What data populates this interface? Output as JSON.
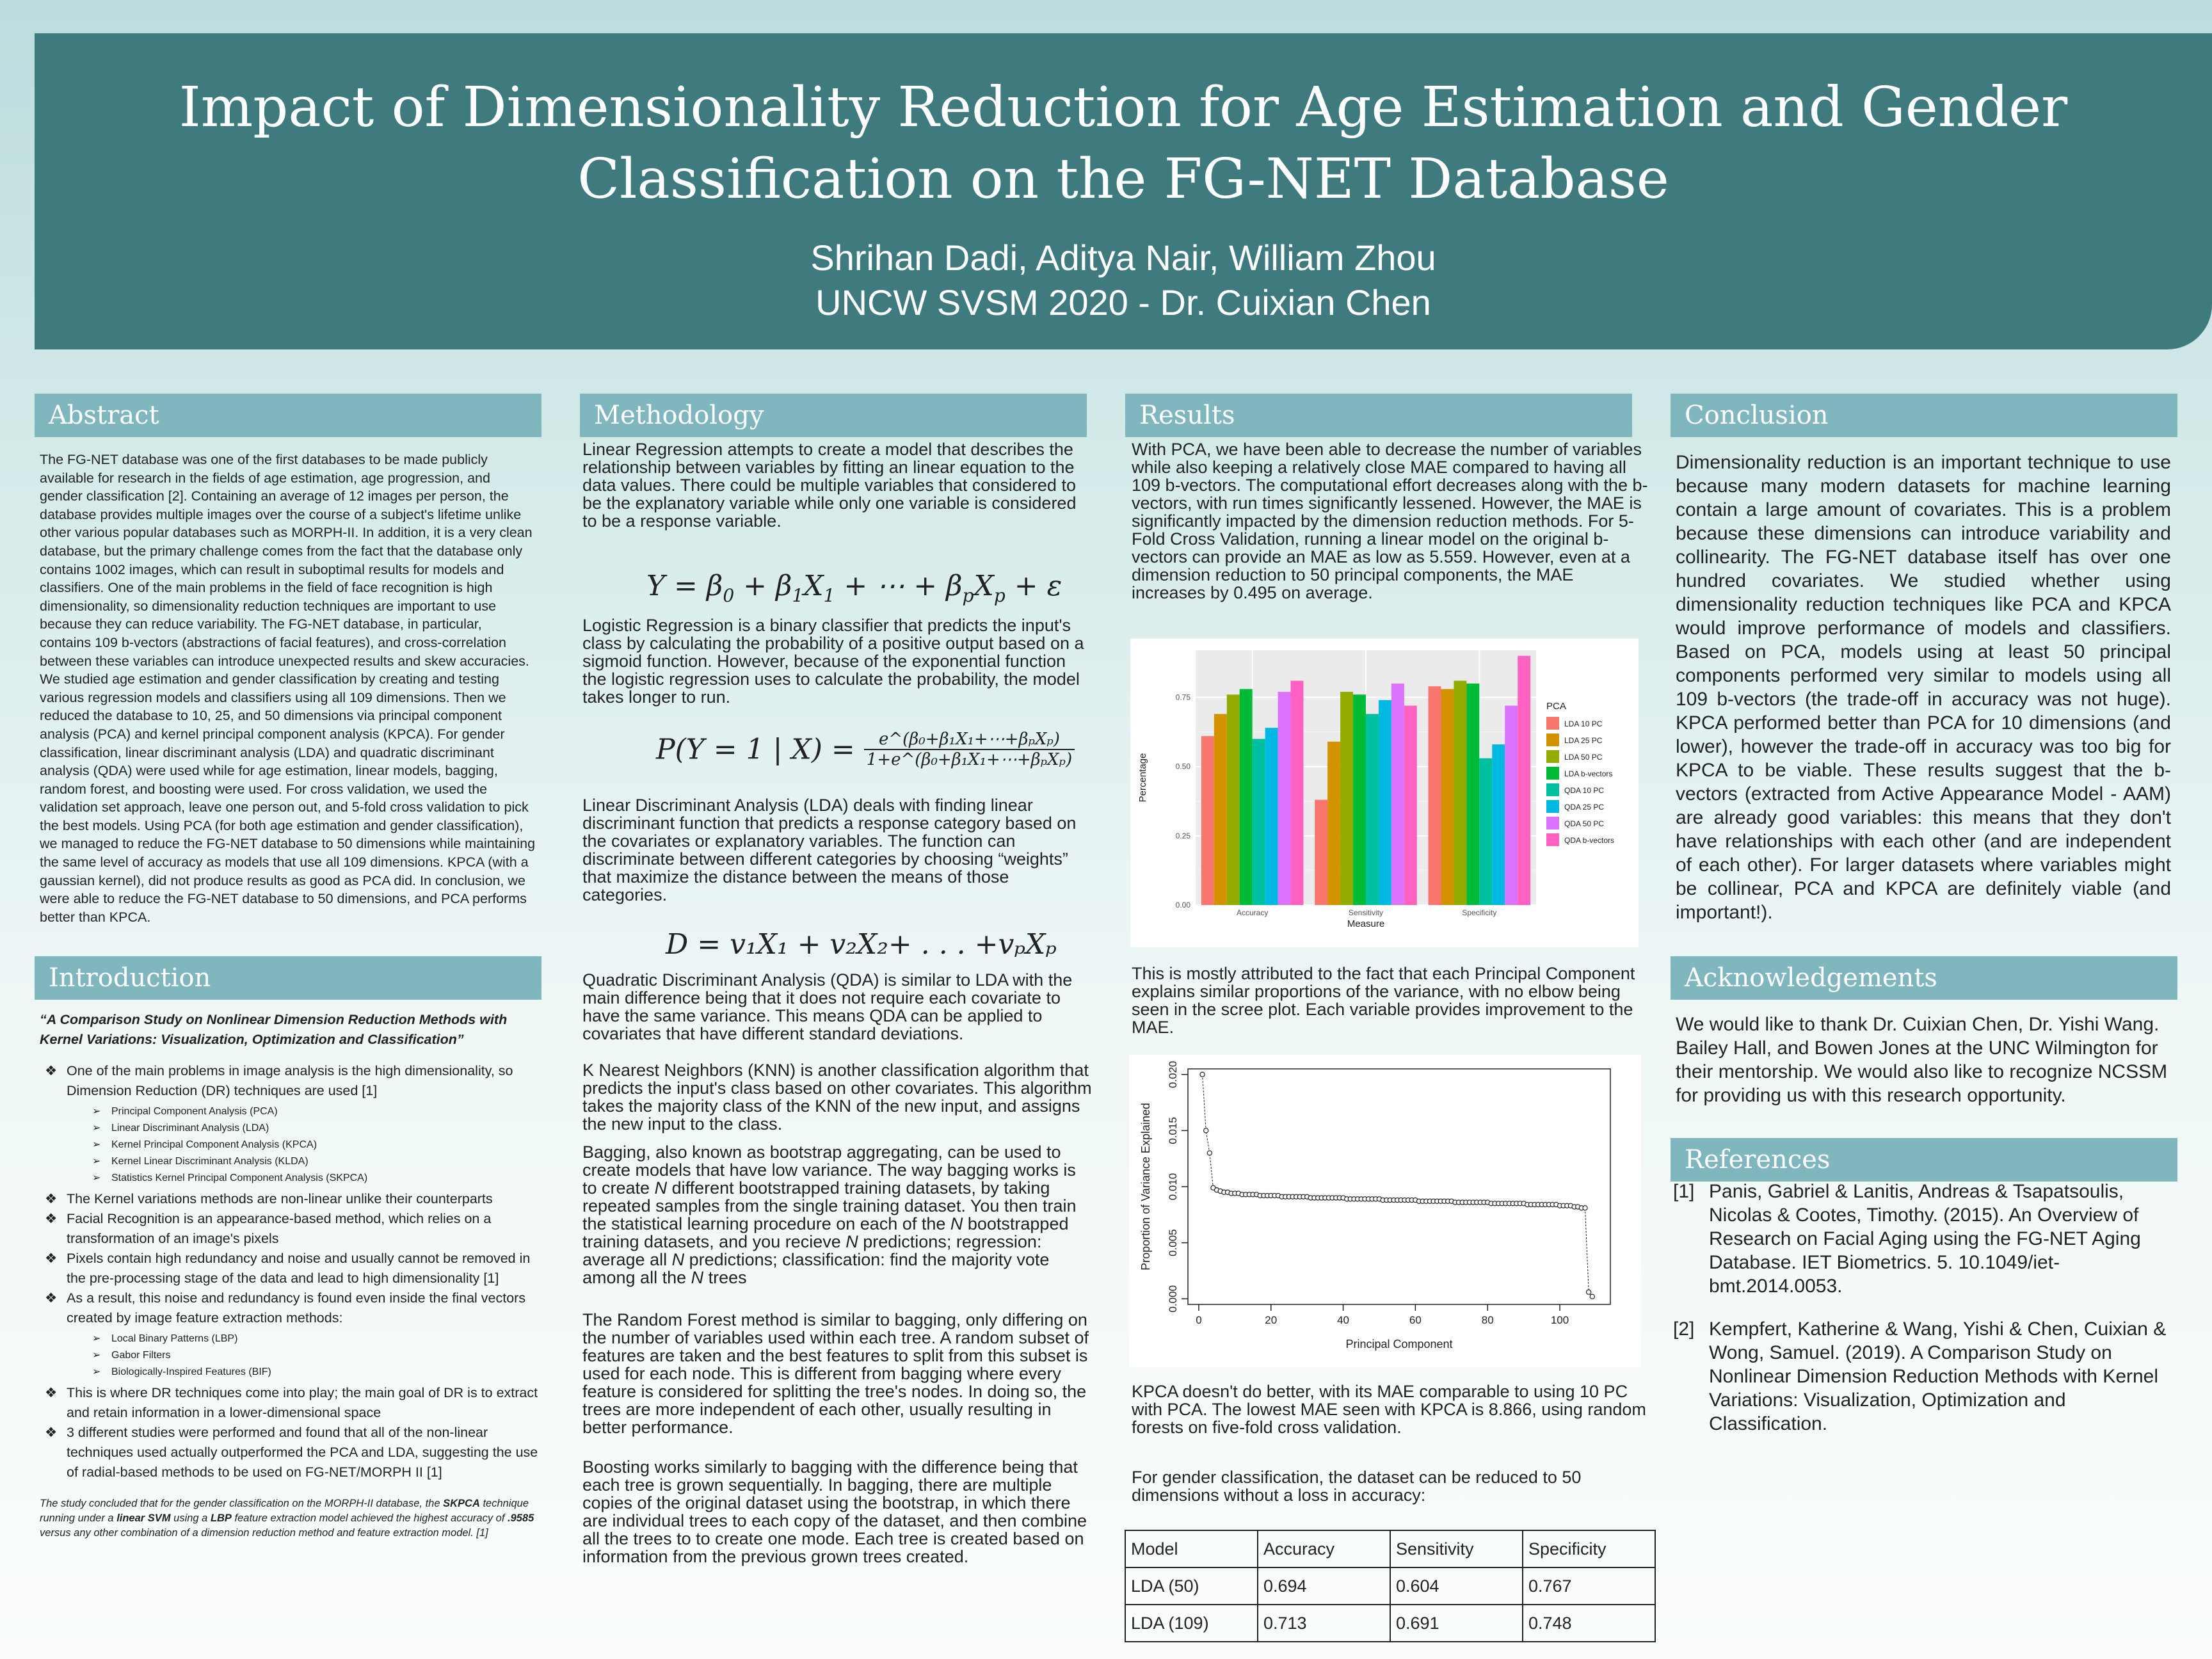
{
  "header": {
    "title": "Impact of Dimensionality Reduction for Age Estimation and Gender Classification on the FG-NET Database",
    "authors": "Shrihan Dadi, Aditya Nair, William Zhou",
    "affiliation": "UNCW SVSM 2020 - Dr. Cuixian Chen"
  },
  "abstract": {
    "heading": "Abstract",
    "body": "The FG-NET database was one of the first databases to be made publicly available for research in the fields of age estimation, age progression, and gender classification [2]. Containing an average of 12 images per person, the database provides multiple images over the course of a subject's lifetime unlike other various popular databases such as MORPH-II. In addition, it is a very clean database, but the primary challenge comes from the fact that the database only contains 1002 images, which can result in suboptimal results for models and classifiers. One of the main problems in the field of face recognition is high dimensionality, so dimensionality reduction techniques are important to use because they can reduce variability. The FG-NET database, in particular, contains 109 b-vectors (abstractions of facial features), and cross-correlation between these variables can introduce unexpected results and skew accuracies. We studied age estimation and gender classification by creating and testing various regression models and classifiers using all 109 dimensions. Then we reduced the database to 10, 25, and 50 dimensions via principal component analysis (PCA) and kernel principal component analysis (KPCA). For gender classification, linear discriminant analysis (LDA) and quadratic discriminant analysis (QDA) were used while for age estimation, linear models, bagging, random forest, and boosting were used. For cross validation, we used the validation set approach, leave one person out, and 5-fold cross validation to pick the best models. Using PCA (for both age estimation and gender classification), we managed to reduce the FG-NET database to 50 dimensions while maintaining the same level of accuracy as models that use all 109 dimensions. KPCA (with a gaussian kernel), did not produce results as good as PCA did. In conclusion, we were able to reduce the FG-NET database to 50 dimensions, and PCA performs better than KPCA."
  },
  "introduction": {
    "heading": "Introduction",
    "quote": "“A Comparison Study on Nonlinear Dimension Reduction Methods with Kernel Variations: Visualization, Optimization and Classification”",
    "bullet_symbol": "❖",
    "sub_bullet_symbol": "➢",
    "b1": "One of the main problems in image analysis is the high dimensionality, so Dimension Reduction (DR) techniques are used [1]",
    "b1_subs": [
      "Principal Component Analysis (PCA)",
      "Linear Discriminant Analysis (LDA)",
      "Kernel Principal Component Analysis (KPCA)",
      "Kernel Linear Discriminant Analysis (KLDA)",
      "Statistics Kernel Principal Component Analysis (SKPCA)"
    ],
    "b2": "The Kernel variations methods are non-linear unlike their counterparts",
    "b3": " Facial Recognition is an appearance-based method, which relies on a transformation of an image's pixels",
    "b4": "Pixels contain high redundancy and noise and usually cannot be removed in the pre-processing stage of the data and lead to high dimensionality    [1]",
    "b5": "As a result, this noise and redundancy is found even inside the final vectors created by image feature extraction methods:",
    "b5_subs": [
      "Local Binary Patterns (LBP)",
      "Gabor Filters",
      "Biologically-Inspired Features (BIF)"
    ],
    "b6": "This is where DR techniques come into play; the main goal of DR is to extract and retain information in a lower-dimensional space",
    "b7": "3 different studies were performed and found that all of the non-linear techniques used actually outperformed the PCA and LDA, suggesting the use of radial-based methods to be used on FG-NET/MORPH II   [1]",
    "conclusion_note": {
      "t1": "The study concluded that for the gender classification on the MORPH-II database, the ",
      "t2": "SKPCA",
      "t3": " technique running under a ",
      "t4": "linear SVM",
      "t5": " using a ",
      "t6": "LBP",
      "t7": " feature extraction model achieved the highest accuracy of ",
      "t8": ".9585",
      "t9": " versus any other combination of a dimension reduction method and feature extraction model.  [1]"
    }
  },
  "methodology": {
    "heading": "Methodology",
    "p_linear": "Linear Regression attempts to create a model that describes the relationship between variables by fitting an linear equation to the data values. There could be multiple variables that considered to be the explanatory variable while only one variable is considered to be a response variable.",
    "p_logistic": "Logistic Regression is a binary classifier that predicts the input's class by calculating the probability of a positive output based on a sigmoid function. However, because of the exponential function the logistic regression uses to calculate the probability, the model takes longer to run.",
    "p_lda": "Linear Discriminant Analysis (LDA) deals with finding linear discriminant function that predicts a response category based on the covariates or explanatory variables. The function can discriminate between different categories by choosing “weights” that maximize the distance between the means of those categories.",
    "p_qda": "Quadratic Discriminant Analysis (QDA) is similar to LDA with the main difference being that it does not require each covariate to have the same variance. This means QDA can be applied to covariates that have different standard deviations.",
    "p_knn": " K Nearest Neighbors (KNN) is another classification algorithm that predicts the input's class based on other covariates. This algorithm takes the majority class of the KNN of the new input, and assigns the new input to the class.",
    "p_bag_1": "Bagging, also known as bootstrap aggregating, can be used to create models that have low variance. The way bagging works is to create ",
    "p_bag_N": "N",
    "p_bag_2": " different bootstrapped training datasets, by taking repeated samples from the single training dataset. You then train the statistical learning procedure on each of the ",
    "p_bag_3": " bootstrapped training datasets, and you recieve ",
    "p_bag_4": " predictions; regression: average all ",
    "p_bag_5": " predictions; classification: find the majority vote among all the ",
    "p_bag_6": " trees",
    "p_rf": "The Random Forest method is similar to bagging, only differing on the number of variables used within each tree. A random subset of features are taken and the best features to split from this subset is used for each node. This is different from bagging where every feature is considered for splitting the tree's nodes. In doing so, the trees are more independent of each other, usually resulting in better performance.",
    "p_boost": "Boosting works similarly to bagging with the difference being that each tree is grown sequentially. In bagging, there are multiple copies of the original dataset using the bootstrap, in which there are individual trees to each copy of the dataset, and then combine all the trees to to create one mode. Each tree is created based on information from the previous grown trees created.",
    "eq1": {
      "Y": "Y",
      "eq": " = ",
      "b0": "β",
      "s0": "0",
      "plus": " + ",
      "b1": "β",
      "s1": "1",
      "X1": "X",
      "x1s": "1",
      "dots": " + ⋯ + ",
      "bp": "β",
      "sp": "p",
      "Xp": "X",
      "xps": "p",
      "eps": " + ε"
    },
    "eq2": {
      "lhs": "P(Y = 1 | X) = ",
      "num": "e^(β₀+β₁X₁+⋯+βₚXₚ)",
      "den": "1+e^(β₀+β₁X₁+⋯+βₚXₚ)"
    },
    "eq3": "D = v₁X₁ + v₂X₂+ . . . +vₚXₚ"
  },
  "results": {
    "heading": "Results",
    "p1": "With PCA, we have been able to decrease the number of variables while also keeping a relatively close MAE compared to having all 109 b-vectors.  The computational effort decreases along with the b-vectors, with run times significantly lessened. However, the MAE is significantly impacted by the dimension reduction methods. For 5-Fold Cross Validation, running a linear model on the original b-vectors can provide an MAE as low as 5.559. However, even at a dimension reduction to 50 principal components, the MAE increases by 0.495 on average.",
    "p2": "This is mostly attributed to the fact that each Principal Component explains similar proportions of the variance, with no elbow being seen in the scree plot. Each variable provides improvement to the MAE.",
    "p3": "KPCA doesn't do better, with its MAE comparable to using 10 PC with PCA. The lowest MAE seen with KPCA is 8.866, using random forests on five-fold cross validation.",
    "p4": "For gender classification, the dataset can be reduced to 50 dimensions without a loss in accuracy:",
    "table": {
      "headers": [
        "Model",
        "Accuracy",
        "Sensitivity",
        "Specificity"
      ],
      "rows": [
        [
          "LDA (50)",
          "0.694",
          "0.604",
          "0.767"
        ],
        [
          "LDA (109)",
          "0.713",
          "0.691",
          "0.748"
        ]
      ]
    }
  },
  "conclusion": {
    "heading": "Conclusion",
    "body": "Dimensionality reduction is an important technique to use because many modern datasets for machine learning contain a large amount of covariates. This is a problem because these dimensions can introduce variability and collinearity. The FG-NET database itself has over one hundred covariates. We studied whether using dimensionality reduction techniques like PCA and KPCA would improve performance of models and classifiers. Based on PCA, models using at least 50 principal components performed very similar to models using all 109 b-vectors (the trade-off in accuracy was not huge). KPCA performed better than PCA for 10 dimensions (and lower), however the trade-off in accuracy was too big for KPCA to be viable. These results suggest that the b-vectors (extracted from Active Appearance Model - AAM) are already good variables: this means that they don't have relationships with each other (and are independent of each other). For larger datasets where variables might be collinear, PCA and KPCA are definitely viable (and important!)."
  },
  "acknowledgements": {
    "heading": "Acknowledgements",
    "body": "We would like to thank Dr. Cuixian Chen, Dr. Yishi Wang. Bailey Hall, and Bowen Jones at the UNC Wilmington for their mentorship. We would also like to recognize NCSSM for providing us with this research opportunity."
  },
  "references": {
    "heading": "References",
    "items": [
      {
        "num": "[1]",
        "text": "Panis, Gabriel & Lanitis, Andreas & Tsapatsoulis, Nicolas & Cootes, Timothy. (2015). An Overview of Research on Facial Aging using the FG-NET Aging Database. IET Biometrics. 5. 10.1049/iet-bmt.2014.0053."
      },
      {
        "num": "[2]",
        "text": "Kempfert, Katherine & Wang, Yishi & Chen, Cuixian & Wong, Samuel. (2019). A Comparison Study on Nonlinear Dimension Reduction Methods with Kernel Variations: Visualization, Optimization and Classification."
      }
    ]
  },
  "chart_data": [
    {
      "type": "bar",
      "title": "",
      "xlabel": "Measure",
      "ylabel": "Percentage",
      "categories": [
        "Accuracy",
        "Sensitivity",
        "Specificity"
      ],
      "ylim": [
        0,
        0.92
      ],
      "yticks": [
        0,
        0.25,
        0.5,
        0.75
      ],
      "ytick_labels": [
        "0.00",
        "0.25",
        "0.50",
        "0.75"
      ],
      "legend_title": "PCA",
      "legend_position": "right",
      "series": [
        {
          "name": "LDA 10 PC",
          "color": "#F8766D",
          "values": [
            0.61,
            0.38,
            0.79
          ]
        },
        {
          "name": "LDA 25 PC",
          "color": "#D39200",
          "values": [
            0.69,
            0.59,
            0.78
          ]
        },
        {
          "name": "LDA 50 PC",
          "color": "#93AA00",
          "values": [
            0.76,
            0.77,
            0.81
          ]
        },
        {
          "name": "LDA b-vectors",
          "color": "#00BA38",
          "values": [
            0.78,
            0.76,
            0.8
          ]
        },
        {
          "name": "QDA 10 PC",
          "color": "#00C19F",
          "values": [
            0.6,
            0.69,
            0.53
          ]
        },
        {
          "name": "QDA 25 PC",
          "color": "#00B9E3",
          "values": [
            0.64,
            0.74,
            0.58
          ]
        },
        {
          "name": "QDA 50 PC",
          "color": "#DB72FB",
          "values": [
            0.77,
            0.8,
            0.72
          ]
        },
        {
          "name": "QDA b-vectors",
          "color": "#FF61C3",
          "values": [
            0.81,
            0.72,
            0.9
          ]
        }
      ]
    },
    {
      "type": "scatter",
      "title": "",
      "xlabel": "Principal Component",
      "ylabel": "Proportion of Variance Explained",
      "xlim": [
        -3,
        114
      ],
      "ylim": [
        -0.0005,
        0.0205
      ],
      "xticks": [
        0,
        20,
        40,
        60,
        80,
        100
      ],
      "xtick_labels": [
        "0",
        "20",
        "40",
        "60",
        "80",
        "100"
      ],
      "yticks": [
        0,
        0.005,
        0.01,
        0.015,
        0.02
      ],
      "ytick_labels": [
        "0.000",
        "0.005",
        "0.010",
        "0.015",
        "0.020"
      ],
      "x": [
        1,
        2,
        3,
        4,
        5,
        6,
        7,
        8,
        9,
        10,
        11,
        12,
        13,
        14,
        15,
        16,
        17,
        18,
        19,
        20,
        21,
        22,
        23,
        24,
        25,
        26,
        27,
        28,
        29,
        30,
        31,
        32,
        33,
        34,
        35,
        36,
        37,
        38,
        39,
        40,
        41,
        42,
        43,
        44,
        45,
        46,
        47,
        48,
        49,
        50,
        51,
        52,
        53,
        54,
        55,
        56,
        57,
        58,
        59,
        60,
        61,
        62,
        63,
        64,
        65,
        66,
        67,
        68,
        69,
        70,
        71,
        72,
        73,
        74,
        75,
        76,
        77,
        78,
        79,
        80,
        81,
        82,
        83,
        84,
        85,
        86,
        87,
        88,
        89,
        90,
        91,
        92,
        93,
        94,
        95,
        96,
        97,
        98,
        99,
        100,
        101,
        102,
        103,
        104,
        105,
        106,
        107,
        108,
        109
      ],
      "y": [
        0.02,
        0.015,
        0.013,
        0.0099,
        0.0097,
        0.0096,
        0.0095,
        0.0095,
        0.0094,
        0.0094,
        0.0094,
        0.0093,
        0.0093,
        0.0093,
        0.0093,
        0.0093,
        0.0092,
        0.0092,
        0.0092,
        0.0092,
        0.0092,
        0.0092,
        0.0091,
        0.0091,
        0.0091,
        0.0091,
        0.0091,
        0.0091,
        0.0091,
        0.0091,
        0.009,
        0.009,
        0.009,
        0.009,
        0.009,
        0.009,
        0.009,
        0.009,
        0.009,
        0.009,
        0.0089,
        0.0089,
        0.0089,
        0.0089,
        0.0089,
        0.0089,
        0.0089,
        0.0089,
        0.0089,
        0.0089,
        0.0088,
        0.0088,
        0.0088,
        0.0088,
        0.0088,
        0.0088,
        0.0088,
        0.0088,
        0.0088,
        0.0088,
        0.0087,
        0.0087,
        0.0087,
        0.0087,
        0.0087,
        0.0087,
        0.0087,
        0.0087,
        0.0087,
        0.0087,
        0.0086,
        0.0086,
        0.0086,
        0.0086,
        0.0086,
        0.0086,
        0.0086,
        0.0086,
        0.0086,
        0.0086,
        0.0085,
        0.0085,
        0.0085,
        0.0085,
        0.0085,
        0.0085,
        0.0085,
        0.0085,
        0.0085,
        0.0085,
        0.0084,
        0.0084,
        0.0084,
        0.0084,
        0.0084,
        0.0084,
        0.0084,
        0.0084,
        0.0084,
        0.0083,
        0.0083,
        0.0083,
        0.0083,
        0.0082,
        0.0082,
        0.0081,
        0.0081,
        0.0006,
        0.0002
      ]
    }
  ]
}
